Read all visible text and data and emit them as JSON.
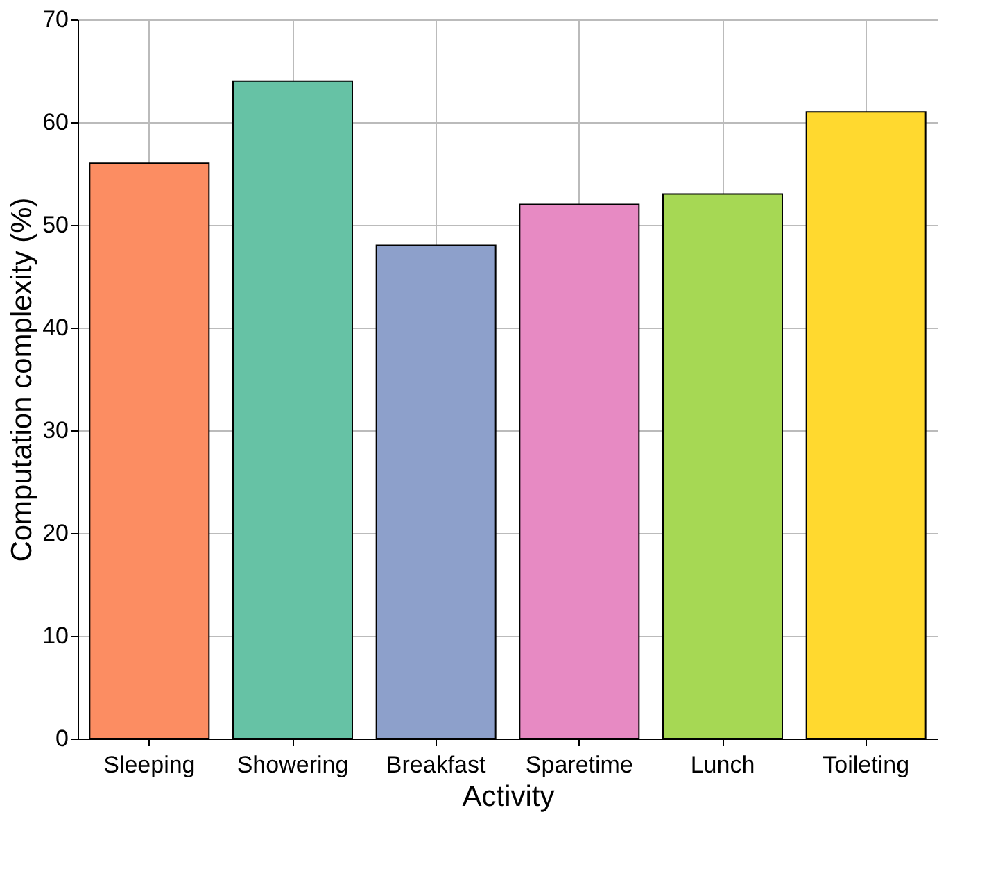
{
  "chart_data": {
    "type": "bar",
    "xlabel": "Activity",
    "ylabel": "Computation complexity (%)",
    "categories": [
      "Sleeping",
      "Showering",
      "Breakfast",
      "Sparetime",
      "Lunch",
      "Toileting"
    ],
    "values": [
      56,
      64,
      48,
      52,
      53,
      61
    ],
    "colors": [
      "#fc8d62",
      "#66c2a5",
      "#8da0cb",
      "#e78ac3",
      "#a6d854",
      "#ffd92f"
    ],
    "ylim": [
      0,
      70
    ],
    "yticks": [
      0,
      10,
      20,
      30,
      40,
      50,
      60,
      70
    ],
    "grid": true
  }
}
